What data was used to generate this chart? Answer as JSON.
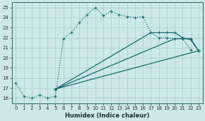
{
  "xlabel": "Humidex (Indice chaleur)",
  "ylabel": "",
  "bg_color": "#cce8e8",
  "grid_color": "#b0d0d0",
  "line_color": "#1a6b6b",
  "xlim": [
    -0.5,
    23.5
  ],
  "ylim": [
    15.5,
    25.5
  ],
  "xticks": [
    0,
    1,
    2,
    3,
    4,
    5,
    6,
    7,
    8,
    9,
    10,
    11,
    12,
    13,
    14,
    15,
    16,
    17,
    18,
    19,
    20,
    21,
    22,
    23
  ],
  "yticks": [
    16,
    17,
    18,
    19,
    20,
    21,
    22,
    23,
    24,
    25
  ],
  "lines": [
    {
      "x": [
        0,
        1,
        2,
        3,
        4,
        5,
        6,
        7,
        8,
        9,
        10,
        11,
        12,
        13,
        14,
        15,
        16,
        17,
        18,
        19,
        20,
        21,
        22
      ],
      "y": [
        17.5,
        16.2,
        16.0,
        16.3,
        16.0,
        16.2,
        21.9,
        22.5,
        23.5,
        24.3,
        25.0,
        24.2,
        24.6,
        24.3,
        24.1,
        24.0,
        24.1,
        22.5,
        22.0,
        22.0,
        21.9,
        21.9,
        20.8
      ],
      "style": ":"
    },
    {
      "x": [
        5,
        23
      ],
      "y": [
        16.9,
        20.7
      ],
      "style": "-"
    },
    {
      "x": [
        5,
        20,
        21,
        22,
        23
      ],
      "y": [
        16.9,
        21.9,
        21.9,
        21.9,
        20.7
      ],
      "style": "-"
    },
    {
      "x": [
        5,
        17,
        18,
        19,
        20,
        21,
        22,
        23
      ],
      "y": [
        16.9,
        22.5,
        22.5,
        22.5,
        22.5,
        22.0,
        21.8,
        20.7
      ],
      "style": "-"
    }
  ]
}
